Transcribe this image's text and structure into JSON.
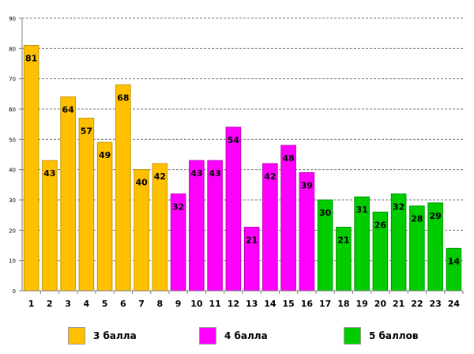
{
  "chart_data": {
    "type": "bar",
    "title": "",
    "xlabel": "",
    "ylabel": "",
    "ylim": [
      0,
      90
    ],
    "yticks": [
      0,
      10,
      20,
      30,
      40,
      50,
      60,
      70,
      80,
      90
    ],
    "grid": true,
    "legend_position": "bottom",
    "categories": [
      "1",
      "2",
      "3",
      "4",
      "5",
      "6",
      "7",
      "8",
      "9",
      "10",
      "11",
      "12",
      "13",
      "14",
      "15",
      "16",
      "17",
      "18",
      "19",
      "20",
      "21",
      "22",
      "23",
      "24"
    ],
    "values": [
      81,
      43,
      64,
      57,
      49,
      68,
      40,
      42,
      32,
      43,
      43,
      54,
      21,
      42,
      48,
      39,
      30,
      21,
      31,
      26,
      32,
      28,
      29,
      14
    ],
    "groups": [
      {
        "name": "3 балла",
        "color": "#FFC000",
        "border": "#C99700",
        "from": 0,
        "to": 7
      },
      {
        "name": "4 балла",
        "color": "#FF00FF",
        "border": "#C000C0",
        "from": 8,
        "to": 15
      },
      {
        "name": "5 баллов",
        "color": "#00CC00",
        "border": "#009A00",
        "from": 16,
        "to": 23
      }
    ]
  }
}
